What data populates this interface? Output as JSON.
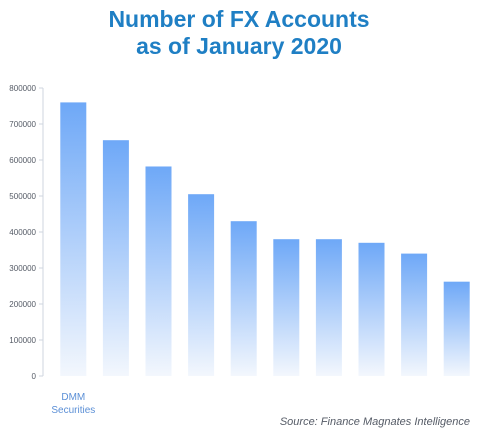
{
  "title_line1": "Number of FX Accounts",
  "title_line2": "as of January 2020",
  "source": "Source: Finance Magnates Intelligence",
  "colors": {
    "title": "#1f7fc4",
    "bar_top": "#6ea8f7",
    "bar_bottom": "#f3f7fd",
    "axis": "#cfd6df",
    "tick_text": "#555b66",
    "category_label": "#5b8fd6"
  },
  "chart_data": {
    "type": "bar",
    "title": "Number of FX Accounts as of January 2020",
    "categories": [
      "DMM Securities",
      "",
      "",
      "",
      "",
      "",
      "",
      "",
      "",
      ""
    ],
    "values": [
      760000,
      655000,
      582000,
      505000,
      430000,
      380000,
      380000,
      370000,
      340000,
      262000
    ],
    "ylim": [
      0,
      800000
    ],
    "yticks": [
      0,
      100000,
      200000,
      300000,
      400000,
      500000,
      600000,
      700000,
      800000
    ],
    "ytick_labels": [
      "0",
      "100000",
      "200000",
      "300000",
      "400000",
      "500000",
      "600000",
      "700000",
      "800000"
    ],
    "xlabel": "",
    "ylabel": "",
    "grid": false,
    "bar_fill": "vertical gradient, blue to white"
  }
}
